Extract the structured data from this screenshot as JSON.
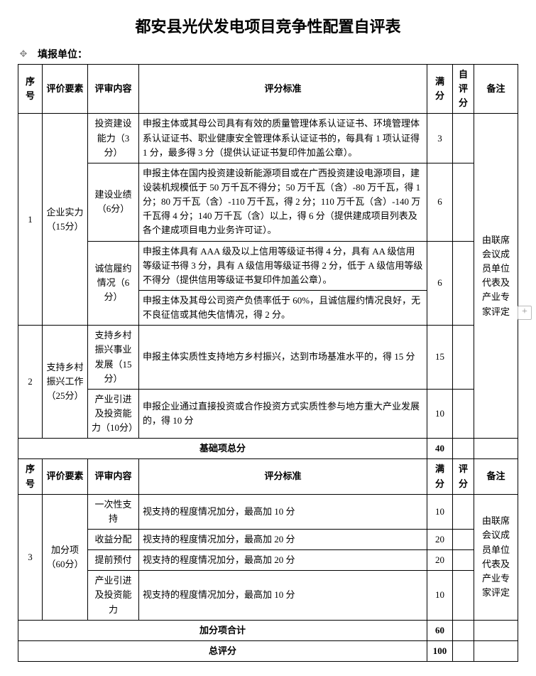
{
  "title": "都安县光伏发电项目竞争性配置自评表",
  "filler_label": "填报单位：",
  "header1": {
    "seq": "序号",
    "eval": "评价要素",
    "cont": "评审内容",
    "std": "评分标准",
    "full": "满分",
    "self": "自评分",
    "note": "备注"
  },
  "r1": {
    "seq": "1",
    "eval": "企业实力（15分）",
    "note": "由联席会议成员单位代表及产业专家评定",
    "a_cont": "投资建设能力（3分）",
    "a_std": "申报主体或其母公司具有有效的质量管理体系认证证书、环境管理体系认证证书、职业健康安全管理体系认证证书的，每具有 1 项认证得 1 分，最多得 3 分（提供认证证书复印件加盖公章）。",
    "a_full": "3",
    "b_cont": "建设业绩（6分）",
    "b_std": "申报主体在国内投资建设新能源项目或在广西投资建设电源项目，建设装机规模低于 50 万千瓦不得分；50 万千瓦（含）-80 万千瓦，得 1 分；80 万千瓦（含）-110 万千瓦，得 2 分；110 万千瓦（含）-140 万千瓦得 4 分；140 万千瓦（含）以上，得 6 分（提供建成项目列表及各个建成项目电力业务许可证）。",
    "b_full": "6",
    "c_cont": "诚信履约情况（6分）",
    "c_std1": "申报主体具有 AAA 级及以上信用等级证书得 4 分，具有 AA 级信用等级证书得 3 分，具有 A 级信用等级证书得 2 分，低于 A 级信用等级不得分（提供信用等级证书复印件加盖公章）。",
    "c_std2": "申报主体及其母公司资产负债率低于 60%，且诚信履约情况良好，无不良征信或其他失信情况，得 2 分。",
    "c_full": "6"
  },
  "r2": {
    "seq": "2",
    "eval": "支持乡村振兴工作（25分）",
    "a_cont": "支持乡村振兴事业发展（15分）",
    "a_std": "申报主体实质性支持地方乡村振兴，达到市场基准水平的，得 15 分",
    "a_full": "15",
    "b_cont": "产业引进及投资能力（10分）",
    "b_std": "申报企业通过直接投资或合作投资方式实质性参与地方重大产业发展的，得 10 分",
    "b_full": "10"
  },
  "base_total_label": "基础项总分",
  "base_total": "40",
  "header2": {
    "seq": "序号",
    "eval": "评价要素",
    "cont": "评审内容",
    "std": "评分标准",
    "full": "满分",
    "self": "评分",
    "note": "备注"
  },
  "r3": {
    "seq": "3",
    "eval": "加分项（60分）",
    "note": "由联席会议成员单位代表及产业专家评定",
    "a_cont": "一次性支持",
    "a_std": "视支持的程度情况加分，最高加 10 分",
    "a_full": "10",
    "b_cont": "收益分配",
    "b_std": "视支持的程度情况加分，最高加 20 分",
    "b_full": "20",
    "c_cont": "提前预付",
    "c_std": "视支持的程度情况加分，最高加 20 分",
    "c_full": "20",
    "d_cont": "产业引进及投资能力",
    "d_std": "视支持的程度情况加分，最高加 10 分",
    "d_full": "10"
  },
  "bonus_total_label": "加分项合计",
  "bonus_total": "60",
  "grand_total_label": "总评分",
  "grand_total": "100"
}
